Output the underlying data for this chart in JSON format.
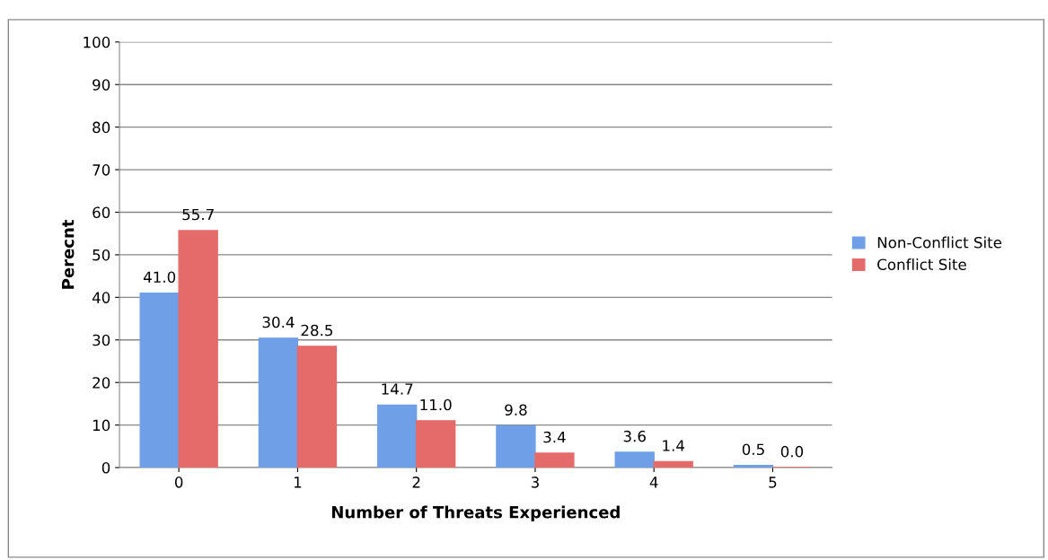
{
  "chart_data": {
    "type": "bar",
    "xlabel": "Number of Threats Experienced",
    "ylabel": "Perecnt",
    "categories": [
      "0",
      "1",
      "2",
      "3",
      "4",
      "5"
    ],
    "series": [
      {
        "name": "Non-Conflict Site",
        "color": "#6f9fe6",
        "values": [
          41.0,
          30.4,
          14.7,
          9.8,
          3.6,
          0.5
        ],
        "value_labels": [
          "41.0",
          "30.4",
          "14.7",
          "9.8",
          "3.6",
          "0.5"
        ]
      },
      {
        "name": "Conflict Site",
        "color": "#e56b6b",
        "values": [
          55.7,
          28.5,
          11.0,
          3.4,
          1.4,
          0.0
        ],
        "value_labels": [
          "55.7",
          "28.5",
          "11.0",
          "3.4",
          "1.4",
          "0.0"
        ]
      }
    ],
    "ylim": [
      0,
      100
    ],
    "yticks": [
      0,
      10,
      20,
      30,
      40,
      50,
      60,
      70,
      80,
      90,
      100
    ],
    "grid": "y",
    "legend": "right"
  }
}
